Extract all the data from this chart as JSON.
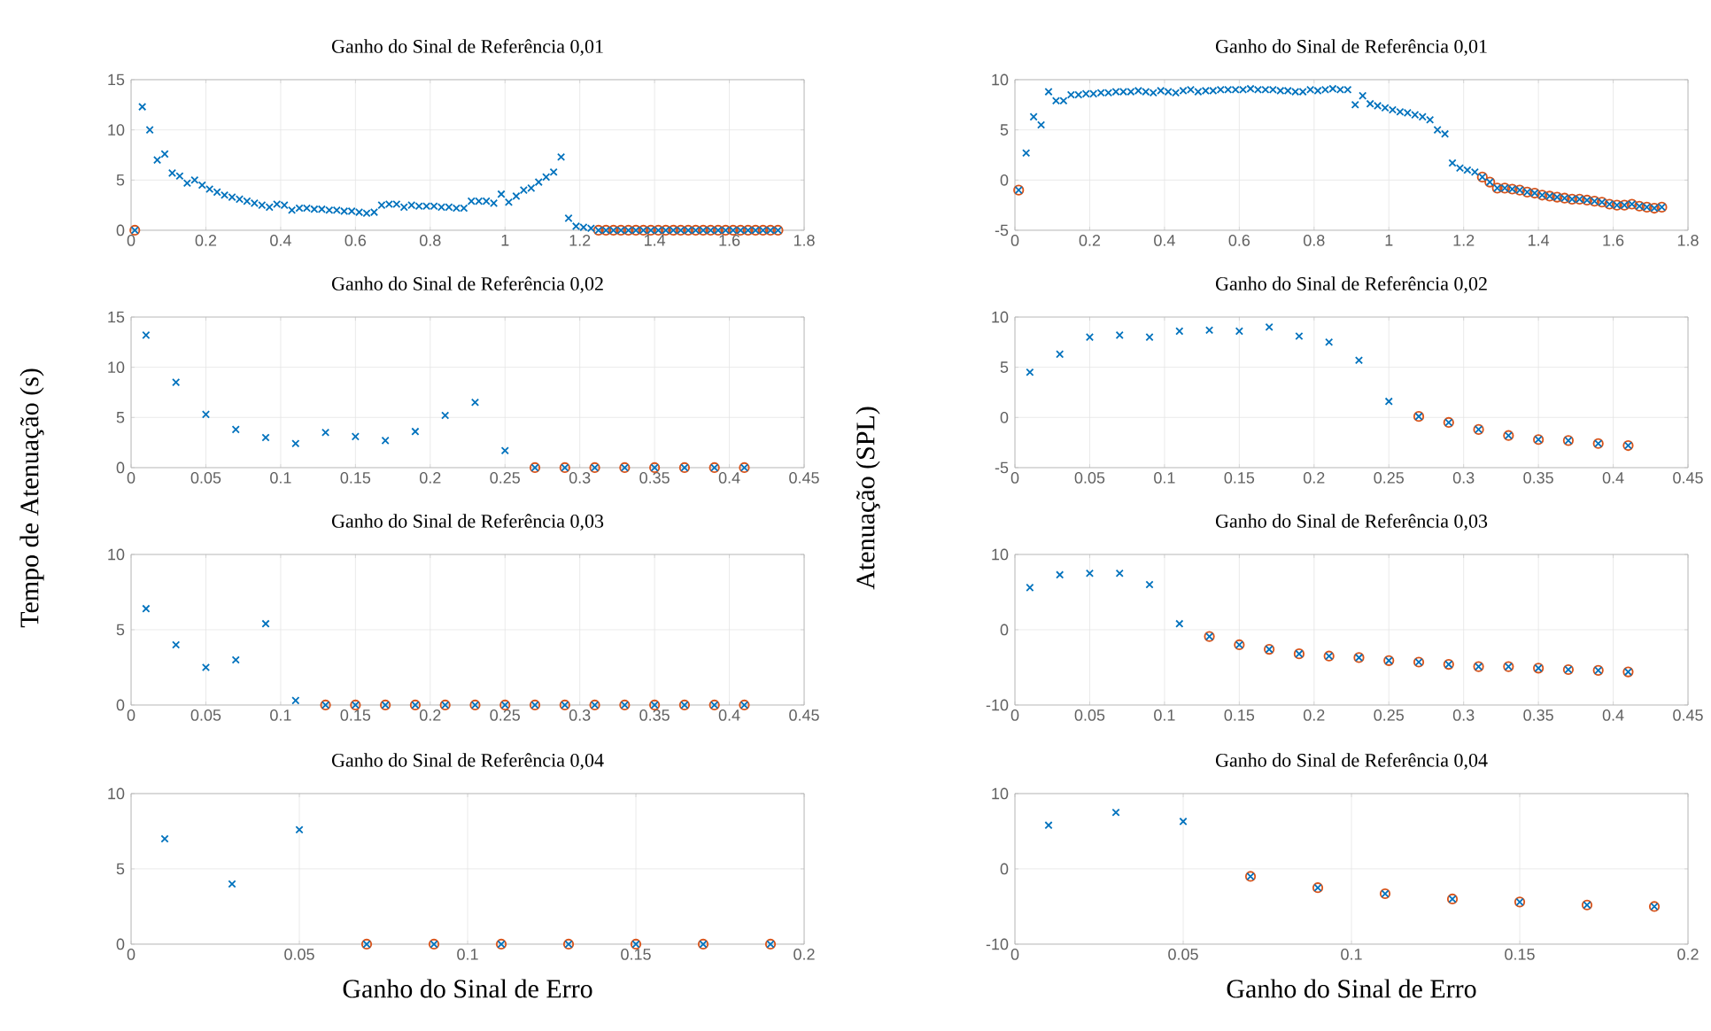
{
  "chart_data": [
    {
      "type": "scatter",
      "title": "Ganho do Sinal de Referência 0,01",
      "xlim": [
        0,
        1.8
      ],
      "xticks": [
        0,
        0.2,
        0.4,
        0.6,
        0.8,
        1,
        1.2,
        1.4,
        1.6,
        1.8
      ],
      "ylim": [
        0,
        15
      ],
      "yticks": [
        0,
        5,
        10,
        15
      ],
      "grid": true,
      "series": [
        {
          "color": "#d95319",
          "marker": "circle",
          "x": [
            0.01,
            1.25,
            1.27,
            1.29,
            1.31,
            1.33,
            1.35,
            1.37,
            1.39,
            1.41,
            1.43,
            1.45,
            1.47,
            1.49,
            1.51,
            1.53,
            1.55,
            1.57,
            1.59,
            1.61,
            1.63,
            1.65,
            1.67,
            1.69,
            1.71,
            1.73
          ],
          "values": [
            0,
            0,
            0,
            0,
            0,
            0,
            0,
            0,
            0,
            0,
            0,
            0,
            0,
            0,
            0,
            0,
            0,
            0,
            0,
            0,
            0,
            0,
            0,
            0,
            0,
            0
          ]
        },
        {
          "color": "#0072bd",
          "marker": "cross",
          "x": [
            0.01,
            0.03,
            0.05,
            0.07,
            0.09,
            0.11,
            0.13,
            0.15,
            0.17,
            0.19,
            0.21,
            0.23,
            0.25,
            0.27,
            0.29,
            0.31,
            0.33,
            0.35,
            0.37,
            0.39,
            0.41,
            0.43,
            0.45,
            0.47,
            0.49,
            0.51,
            0.53,
            0.55,
            0.57,
            0.59,
            0.61,
            0.63,
            0.65,
            0.67,
            0.69,
            0.71,
            0.73,
            0.75,
            0.77,
            0.79,
            0.81,
            0.83,
            0.85,
            0.87,
            0.89,
            0.91,
            0.93,
            0.95,
            0.97,
            0.99,
            1.01,
            1.03,
            1.05,
            1.07,
            1.09,
            1.11,
            1.13,
            1.15,
            1.17,
            1.19,
            1.21,
            1.23,
            1.25,
            1.27,
            1.29,
            1.31,
            1.33,
            1.35,
            1.37,
            1.39,
            1.41,
            1.43,
            1.45,
            1.47,
            1.49,
            1.51,
            1.53,
            1.55,
            1.57,
            1.59,
            1.61,
            1.63,
            1.65,
            1.67,
            1.69,
            1.71,
            1.73
          ],
          "values": [
            0,
            12.3,
            10,
            7,
            7.6,
            5.7,
            5.4,
            4.7,
            5.0,
            4.5,
            4.1,
            3.8,
            3.5,
            3.3,
            3.1,
            2.9,
            2.7,
            2.5,
            2.3,
            2.6,
            2.5,
            2.0,
            2.2,
            2.2,
            2.1,
            2.1,
            2.0,
            2.0,
            1.9,
            1.9,
            1.8,
            1.7,
            1.8,
            2.5,
            2.6,
            2.6,
            2.3,
            2.5,
            2.4,
            2.4,
            2.4,
            2.3,
            2.3,
            2.2,
            2.2,
            2.9,
            2.9,
            2.9,
            2.7,
            3.6,
            2.8,
            3.4,
            4.0,
            4.2,
            4.8,
            5.3,
            5.8,
            7.3,
            1.2,
            0.4,
            0.3,
            0.2,
            0,
            0,
            0,
            0,
            0,
            0,
            0,
            0,
            0,
            0,
            0,
            0,
            0,
            0,
            0,
            0,
            0,
            0,
            0,
            0,
            0,
            0,
            0,
            0,
            0
          ]
        }
      ]
    },
    {
      "type": "scatter",
      "title": "Ganho do Sinal de Referência 0,01",
      "xlim": [
        0,
        1.8
      ],
      "xticks": [
        0,
        0.2,
        0.4,
        0.6,
        0.8,
        1,
        1.2,
        1.4,
        1.6,
        1.8
      ],
      "ylim": [
        -5,
        10
      ],
      "yticks": [
        -5,
        0,
        5,
        10
      ],
      "grid": true,
      "series": [
        {
          "color": "#d95319",
          "marker": "circle",
          "x": [
            0.01,
            1.25,
            1.27,
            1.29,
            1.31,
            1.33,
            1.35,
            1.37,
            1.39,
            1.41,
            1.43,
            1.45,
            1.47,
            1.49,
            1.51,
            1.53,
            1.55,
            1.57,
            1.59,
            1.61,
            1.63,
            1.65,
            1.67,
            1.69,
            1.71,
            1.73
          ],
          "values": [
            -1,
            0.3,
            -0.2,
            -0.8,
            -0.8,
            -0.9,
            -1.0,
            -1.2,
            -1.3,
            -1.5,
            -1.6,
            -1.7,
            -1.8,
            -1.9,
            -1.9,
            -2.0,
            -2.1,
            -2.2,
            -2.4,
            -2.5,
            -2.5,
            -2.4,
            -2.6,
            -2.7,
            -2.8,
            -2.7
          ]
        },
        {
          "color": "#0072bd",
          "marker": "cross",
          "x": [
            0.01,
            0.03,
            0.05,
            0.07,
            0.09,
            0.11,
            0.13,
            0.15,
            0.17,
            0.19,
            0.21,
            0.23,
            0.25,
            0.27,
            0.29,
            0.31,
            0.33,
            0.35,
            0.37,
            0.39,
            0.41,
            0.43,
            0.45,
            0.47,
            0.49,
            0.51,
            0.53,
            0.55,
            0.57,
            0.59,
            0.61,
            0.63,
            0.65,
            0.67,
            0.69,
            0.71,
            0.73,
            0.75,
            0.77,
            0.79,
            0.81,
            0.83,
            0.85,
            0.87,
            0.89,
            0.91,
            0.93,
            0.95,
            0.97,
            0.99,
            1.01,
            1.03,
            1.05,
            1.07,
            1.09,
            1.11,
            1.13,
            1.15,
            1.17,
            1.19,
            1.21,
            1.23,
            1.25,
            1.27,
            1.29,
            1.31,
            1.33,
            1.35,
            1.37,
            1.39,
            1.41,
            1.43,
            1.45,
            1.47,
            1.49,
            1.51,
            1.53,
            1.55,
            1.57,
            1.59,
            1.61,
            1.63,
            1.65,
            1.67,
            1.69,
            1.71,
            1.73
          ],
          "values": [
            -1,
            2.7,
            6.3,
            5.5,
            8.8,
            7.9,
            7.9,
            8.5,
            8.5,
            8.6,
            8.6,
            8.7,
            8.7,
            8.8,
            8.8,
            8.8,
            8.9,
            8.8,
            8.7,
            8.9,
            8.8,
            8.7,
            8.9,
            9.0,
            8.8,
            8.9,
            8.9,
            9.0,
            9.0,
            9.0,
            9.0,
            9.1,
            9.0,
            9.0,
            9.0,
            8.9,
            8.9,
            8.8,
            8.8,
            9.0,
            8.9,
            9.0,
            9.1,
            9.0,
            9.0,
            7.5,
            8.4,
            7.6,
            7.4,
            7.2,
            7.0,
            6.8,
            6.7,
            6.5,
            6.3,
            6.0,
            5.0,
            4.6,
            1.7,
            1.2,
            1.0,
            0.8,
            0.3,
            -0.2,
            -0.8,
            -0.8,
            -0.9,
            -1.0,
            -1.2,
            -1.3,
            -1.5,
            -1.6,
            -1.7,
            -1.8,
            -1.9,
            -1.9,
            -2.0,
            -2.1,
            -2.2,
            -2.4,
            -2.5,
            -2.5,
            -2.4,
            -2.6,
            -2.7,
            -2.8,
            -2.7
          ]
        }
      ]
    },
    {
      "type": "scatter",
      "title": "Ganho do Sinal de Referência 0,02",
      "ylabel": "Tempo de Atenuação (s)",
      "xlim": [
        0,
        0.45
      ],
      "xticks": [
        0,
        0.05,
        0.1,
        0.15,
        0.2,
        0.25,
        0.3,
        0.35,
        0.4,
        0.45
      ],
      "ylim": [
        0,
        15
      ],
      "yticks": [
        0,
        5,
        10,
        15
      ],
      "grid": true,
      "series": [
        {
          "color": "#d95319",
          "marker": "circle",
          "x": [
            0.27,
            0.29,
            0.31,
            0.33,
            0.35,
            0.37,
            0.39,
            0.41
          ],
          "values": [
            0,
            0,
            0,
            0,
            0,
            0,
            0,
            0
          ]
        },
        {
          "color": "#0072bd",
          "marker": "cross",
          "x": [
            0.01,
            0.03,
            0.05,
            0.07,
            0.09,
            0.11,
            0.13,
            0.15,
            0.17,
            0.19,
            0.21,
            0.23,
            0.25,
            0.27,
            0.29,
            0.31,
            0.33,
            0.35,
            0.37,
            0.39,
            0.41
          ],
          "values": [
            13.2,
            8.5,
            5.3,
            3.8,
            3.0,
            2.4,
            3.5,
            3.1,
            2.7,
            3.6,
            5.2,
            6.5,
            1.7,
            0,
            0,
            0,
            0,
            0,
            0,
            0,
            0
          ]
        }
      ]
    },
    {
      "type": "scatter",
      "title": "Ganho do Sinal de Referência 0,02",
      "ylabel": "Atenuação (SPL)",
      "xlim": [
        0,
        0.45
      ],
      "xticks": [
        0,
        0.05,
        0.1,
        0.15,
        0.2,
        0.25,
        0.3,
        0.35,
        0.4,
        0.45
      ],
      "ylim": [
        -5,
        10
      ],
      "yticks": [
        -5,
        0,
        5,
        10
      ],
      "grid": true,
      "series": [
        {
          "color": "#d95319",
          "marker": "circle",
          "x": [
            0.27,
            0.29,
            0.31,
            0.33,
            0.35,
            0.37,
            0.39,
            0.41
          ],
          "values": [
            0.1,
            -0.5,
            -1.2,
            -1.8,
            -2.2,
            -2.3,
            -2.6,
            -2.8
          ]
        },
        {
          "color": "#0072bd",
          "marker": "cross",
          "x": [
            0.01,
            0.03,
            0.05,
            0.07,
            0.09,
            0.11,
            0.13,
            0.15,
            0.17,
            0.19,
            0.21,
            0.23,
            0.25,
            0.27,
            0.29,
            0.31,
            0.33,
            0.35,
            0.37,
            0.39,
            0.41
          ],
          "values": [
            4.5,
            6.3,
            8.0,
            8.2,
            8.0,
            8.6,
            8.7,
            8.6,
            9.0,
            8.1,
            7.5,
            5.7,
            1.6,
            0.1,
            -0.5,
            -1.2,
            -1.8,
            -2.2,
            -2.3,
            -2.6,
            -2.8
          ]
        }
      ]
    },
    {
      "type": "scatter",
      "title": "Ganho do Sinal de Referência 0,03",
      "xlim": [
        0,
        0.45
      ],
      "xticks": [
        0,
        0.05,
        0.1,
        0.15,
        0.2,
        0.25,
        0.3,
        0.35,
        0.4,
        0.45
      ],
      "ylim": [
        0,
        10
      ],
      "yticks": [
        0,
        5,
        10
      ],
      "grid": true,
      "series": [
        {
          "color": "#d95319",
          "marker": "circle",
          "x": [
            0.13,
            0.15,
            0.17,
            0.19,
            0.21,
            0.23,
            0.25,
            0.27,
            0.29,
            0.31,
            0.33,
            0.35,
            0.37,
            0.39,
            0.41
          ],
          "values": [
            0,
            0,
            0,
            0,
            0,
            0,
            0,
            0,
            0,
            0,
            0,
            0,
            0,
            0,
            0
          ]
        },
        {
          "color": "#0072bd",
          "marker": "cross",
          "x": [
            0.01,
            0.03,
            0.05,
            0.07,
            0.09,
            0.11,
            0.13,
            0.15,
            0.17,
            0.19,
            0.21,
            0.23,
            0.25,
            0.27,
            0.29,
            0.31,
            0.33,
            0.35,
            0.37,
            0.39,
            0.41
          ],
          "values": [
            6.4,
            4.0,
            2.5,
            3.0,
            5.4,
            0.3,
            0,
            0,
            0,
            0,
            0,
            0,
            0,
            0,
            0,
            0,
            0,
            0,
            0,
            0,
            0
          ]
        }
      ]
    },
    {
      "type": "scatter",
      "title": "Ganho do Sinal de Referência 0,03",
      "xlim": [
        0,
        0.45
      ],
      "xticks": [
        0,
        0.05,
        0.1,
        0.15,
        0.2,
        0.25,
        0.3,
        0.35,
        0.4,
        0.45
      ],
      "ylim": [
        -10,
        10
      ],
      "yticks": [
        -10,
        0,
        10
      ],
      "grid": true,
      "series": [
        {
          "color": "#d95319",
          "marker": "circle",
          "x": [
            0.13,
            0.15,
            0.17,
            0.19,
            0.21,
            0.23,
            0.25,
            0.27,
            0.29,
            0.31,
            0.33,
            0.35,
            0.37,
            0.39,
            0.41
          ],
          "values": [
            -0.9,
            -2.0,
            -2.6,
            -3.2,
            -3.5,
            -3.7,
            -4.1,
            -4.3,
            -4.6,
            -4.9,
            -4.9,
            -5.1,
            -5.3,
            -5.4,
            -5.6
          ]
        },
        {
          "color": "#0072bd",
          "marker": "cross",
          "x": [
            0.01,
            0.03,
            0.05,
            0.07,
            0.09,
            0.11,
            0.13,
            0.15,
            0.17,
            0.19,
            0.21,
            0.23,
            0.25,
            0.27,
            0.29,
            0.31,
            0.33,
            0.35,
            0.37,
            0.39,
            0.41
          ],
          "values": [
            5.6,
            7.3,
            7.5,
            7.5,
            6.0,
            0.8,
            -0.9,
            -2.0,
            -2.6,
            -3.2,
            -3.5,
            -3.7,
            -4.1,
            -4.3,
            -4.6,
            -4.9,
            -4.9,
            -5.1,
            -5.3,
            -5.4,
            -5.6
          ]
        }
      ]
    },
    {
      "type": "scatter",
      "title": "Ganho do Sinal de Referência 0,04",
      "xlabel": "Ganho do Sinal de Erro",
      "xlim": [
        0,
        0.2
      ],
      "xticks": [
        0,
        0.05,
        0.1,
        0.15,
        0.2
      ],
      "ylim": [
        0,
        10
      ],
      "yticks": [
        0,
        5,
        10
      ],
      "grid": true,
      "series": [
        {
          "color": "#d95319",
          "marker": "circle",
          "x": [
            0.07,
            0.09,
            0.11,
            0.13,
            0.15,
            0.17,
            0.19
          ],
          "values": [
            0,
            0,
            0,
            0,
            0,
            0,
            0
          ]
        },
        {
          "color": "#0072bd",
          "marker": "cross",
          "x": [
            0.01,
            0.03,
            0.05,
            0.07,
            0.09,
            0.11,
            0.13,
            0.15,
            0.17,
            0.19
          ],
          "values": [
            7.0,
            4.0,
            7.6,
            0,
            0,
            0,
            0,
            0,
            0,
            0
          ]
        }
      ]
    },
    {
      "type": "scatter",
      "title": "Ganho do Sinal de Referência 0,04",
      "xlabel": "Ganho do Sinal de Erro",
      "xlim": [
        0,
        0.2
      ],
      "xticks": [
        0,
        0.05,
        0.1,
        0.15,
        0.2
      ],
      "ylim": [
        -10,
        10
      ],
      "yticks": [
        -10,
        0,
        10
      ],
      "grid": true,
      "series": [
        {
          "color": "#d95319",
          "marker": "circle",
          "x": [
            0.07,
            0.09,
            0.11,
            0.13,
            0.15,
            0.17,
            0.19
          ],
          "values": [
            -1.0,
            -2.5,
            -3.3,
            -4.0,
            -4.4,
            -4.8,
            -5.0
          ]
        },
        {
          "color": "#0072bd",
          "marker": "cross",
          "x": [
            0.01,
            0.03,
            0.05,
            0.07,
            0.09,
            0.11,
            0.13,
            0.15,
            0.17,
            0.19
          ],
          "values": [
            5.8,
            7.5,
            6.3,
            -1.0,
            -2.5,
            -3.3,
            -4.0,
            -4.4,
            -4.8,
            -5.0
          ]
        }
      ]
    }
  ]
}
